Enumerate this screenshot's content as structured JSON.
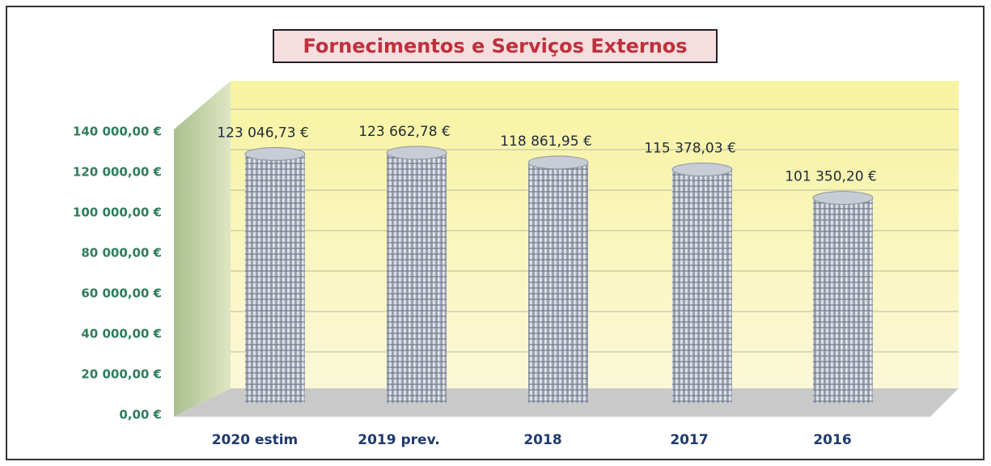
{
  "chart_data": {
    "type": "bar",
    "title": "Fornecimentos e Serviços Externos",
    "categories": [
      "2020 estim",
      "2019 prev.",
      "2018",
      "2017",
      "2016"
    ],
    "values": [
      123046.73,
      123662.78,
      118861.95,
      115378.03,
      101350.2
    ],
    "value_labels": [
      "123 046,73 €",
      "123 662,78 €",
      "118 861,95 €",
      "115 378,03 €",
      "101 350,20 €"
    ],
    "color": "#c8ccd4",
    "ylim": [
      0,
      140000
    ],
    "yticks": [
      {
        "value": 0,
        "label": "0,00 €"
      },
      {
        "value": 20000,
        "label": "20 000,00 €"
      },
      {
        "value": 40000,
        "label": "40 000,00 €"
      },
      {
        "value": 60000,
        "label": "60 000,00 €"
      },
      {
        "value": 80000,
        "label": "80 000,00 €"
      },
      {
        "value": 100000,
        "label": "100 000,00 €"
      },
      {
        "value": 120000,
        "label": "120 000,00 €"
      },
      {
        "value": 140000,
        "label": "140 000,00 €"
      }
    ],
    "grid": true
  }
}
